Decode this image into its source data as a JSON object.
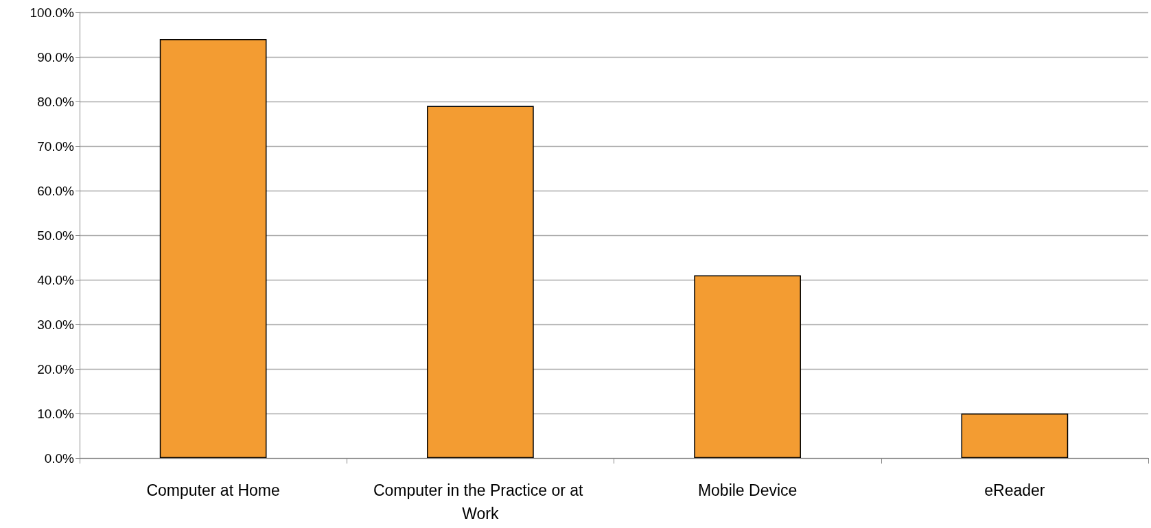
{
  "chart_data": {
    "type": "bar",
    "categories": [
      "Computer at Home",
      "Computer in the Practice or at Work",
      "Mobile Device",
      "eReader"
    ],
    "values": [
      94,
      79,
      41,
      10
    ],
    "color": "#f39c32",
    "ylim": [
      0,
      100
    ],
    "yticks": [
      {
        "value": 0,
        "label": "0.0%"
      },
      {
        "value": 10,
        "label": "10.0%"
      },
      {
        "value": 20,
        "label": "20.0%"
      },
      {
        "value": 30,
        "label": "30.0%"
      },
      {
        "value": 40,
        "label": "40.0%"
      },
      {
        "value": 50,
        "label": "50.0%"
      },
      {
        "value": 60,
        "label": "60.0%"
      },
      {
        "value": 70,
        "label": "70.0%"
      },
      {
        "value": 80,
        "label": "80.0%"
      },
      {
        "value": 90,
        "label": "90.0%"
      },
      {
        "value": 100,
        "label": "100.0%"
      }
    ],
    "grid": "y"
  }
}
